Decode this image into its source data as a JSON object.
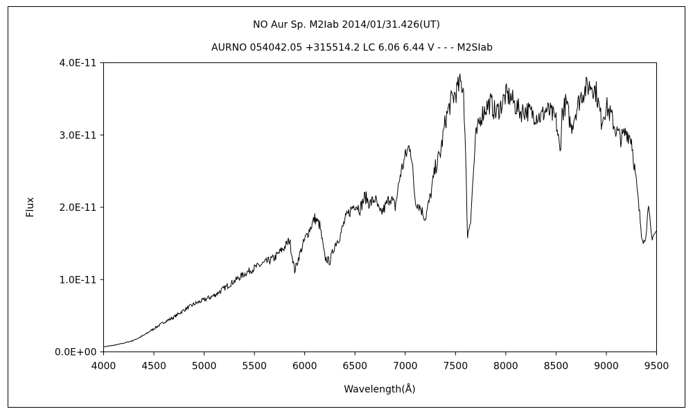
{
  "chart_data": {
    "type": "line",
    "title": "NO Aur   Sp. M2Iab   2014/01/31.426(UT)",
    "subtitle": "AURNO 054042.05 +315514.2 LC 6.06 6.44 V - - - M2SIab",
    "xlabel": "Wavelength(Å)",
    "ylabel": "Flux",
    "xlim": [
      4000,
      9500
    ],
    "ylim": [
      0,
      4e-11
    ],
    "x_ticks": [
      "4000",
      "4500",
      "5000",
      "5500",
      "6000",
      "6500",
      "7000",
      "7500",
      "8000",
      "8500",
      "9000",
      "9500"
    ],
    "y_ticks": [
      "0.0E+00",
      "1.0E-11",
      "2.0E-11",
      "3.0E-11",
      "4.0E-11"
    ],
    "grid": false,
    "line_color": "#000000",
    "series": [
      {
        "x": [
          4000,
          4100,
          4200,
          4300,
          4400,
          4500,
          4600,
          4700,
          4800,
          4900,
          5000,
          5100,
          5200,
          5300,
          5400,
          5500,
          5600,
          5700,
          5800,
          5850,
          5900,
          5950,
          6000,
          6050,
          6100,
          6150,
          6200,
          6250,
          6300,
          6350,
          6400,
          6450,
          6500,
          6550,
          6600,
          6650,
          6700,
          6750,
          6800,
          6850,
          6900,
          6950,
          7000,
          7050,
          7080,
          7100,
          7150,
          7200,
          7250,
          7300,
          7350,
          7400,
          7450,
          7500,
          7550,
          7580,
          7600,
          7620,
          7650,
          7700,
          7750,
          7800,
          7850,
          7900,
          7950,
          8000,
          8050,
          8100,
          8150,
          8200,
          8250,
          8300,
          8350,
          8400,
          8450,
          8500,
          8540,
          8560,
          8600,
          8650,
          8700,
          8750,
          8800,
          8850,
          8900,
          8950,
          9000,
          9050,
          9100,
          9150,
          9200,
          9250,
          9300,
          9350,
          9380,
          9400,
          9420,
          9450,
          9500
        ],
        "y": [
          7e-13,
          9e-13,
          1.2e-12,
          1.6e-12,
          2.3e-12,
          3.2e-12,
          4.1e-12,
          4.8e-12,
          5.8e-12,
          6.6e-12,
          7.2e-12,
          7.8e-12,
          8.8e-12,
          9.8e-12,
          1.08e-11,
          1.16e-11,
          1.23e-11,
          1.3e-11,
          1.45e-11,
          1.55e-11,
          1.12e-11,
          1.35e-11,
          1.55e-11,
          1.7e-11,
          1.85e-11,
          1.75e-11,
          1.3e-11,
          1.25e-11,
          1.48e-11,
          1.6e-11,
          1.82e-11,
          1.95e-11,
          2.05e-11,
          1.98e-11,
          2.15e-11,
          2.05e-11,
          2.12e-11,
          1.9e-11,
          2e-11,
          2.15e-11,
          2e-11,
          2.45e-11,
          2.7e-11,
          2.88e-11,
          2.4e-11,
          2.1e-11,
          2e-11,
          1.85e-11,
          2.15e-11,
          2.55e-11,
          2.75e-11,
          3.2e-11,
          3.45e-11,
          3.58e-11,
          3.72e-11,
          3.65e-11,
          2.7e-11,
          1.6e-11,
          1.85e-11,
          2.95e-11,
          3.25e-11,
          3.38e-11,
          3.45e-11,
          3.3e-11,
          3.4e-11,
          3.55e-11,
          3.52e-11,
          3.4e-11,
          3.32e-11,
          3.35e-11,
          3.3e-11,
          3.28e-11,
          3.25e-11,
          3.35e-11,
          3.3e-11,
          3.2e-11,
          2.75e-11,
          3.3e-11,
          3.45e-11,
          3.1e-11,
          3.35e-11,
          3.55e-11,
          3.65e-11,
          3.7e-11,
          3.6e-11,
          3.2e-11,
          3.4e-11,
          3.25e-11,
          3.05e-11,
          2.95e-11,
          3.05e-11,
          2.95e-11,
          2.3e-11,
          1.65e-11,
          1.5e-11,
          1.75e-11,
          1.95e-11,
          1.6e-11,
          1.65e-11
        ]
      }
    ]
  }
}
